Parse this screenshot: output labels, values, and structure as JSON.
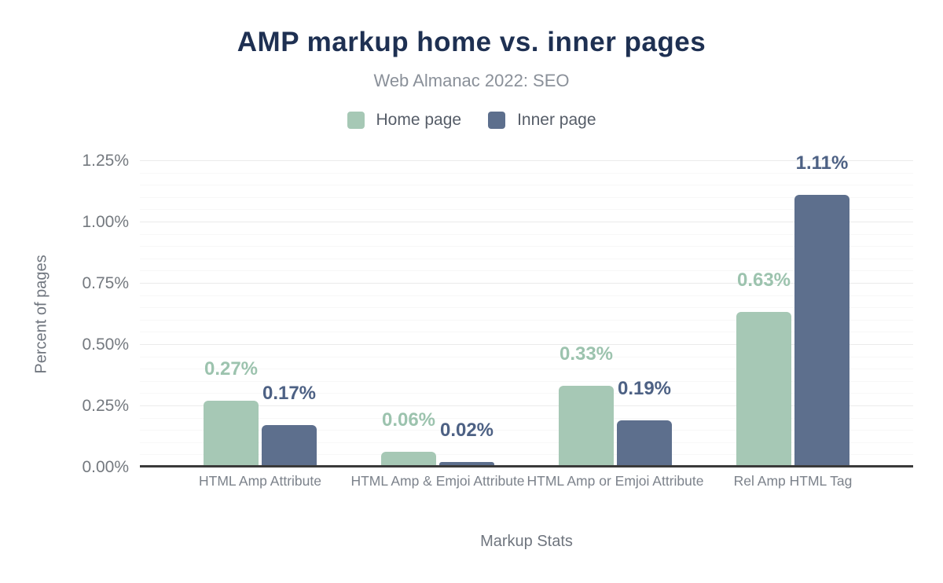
{
  "header": {
    "title": "AMP markup home vs. inner pages",
    "subtitle": "Web Almanac 2022: SEO"
  },
  "legend": {
    "items": [
      {
        "label": "Home page",
        "color": "#a6c8b5"
      },
      {
        "label": "Inner page",
        "color": "#5d6f8d"
      }
    ]
  },
  "axes": {
    "y_title": "Percent of pages",
    "x_title": "Markup Stats",
    "y_ticks": [
      "0.00%",
      "0.25%",
      "0.50%",
      "0.75%",
      "1.00%",
      "1.25%"
    ]
  },
  "chart_data": {
    "type": "bar",
    "title": "AMP markup home vs. inner pages",
    "subtitle": "Web Almanac 2022: SEO",
    "categories": [
      "HTML Amp Attribute",
      "HTML Amp & Emjoi Attribute",
      "HTML Amp or Emjoi Attribute",
      "Rel Amp HTML Tag"
    ],
    "series": [
      {
        "name": "Home page",
        "color": "#a6c8b5",
        "label_color": "#9cc3ae",
        "values": [
          0.27,
          0.06,
          0.33,
          0.63
        ],
        "labels": [
          "0.27%",
          "0.06%",
          "0.33%",
          "0.63%"
        ]
      },
      {
        "name": "Inner page",
        "color": "#5d6f8d",
        "label_color": "#4d6184",
        "values": [
          0.17,
          0.02,
          0.19,
          1.11
        ],
        "labels": [
          "0.17%",
          "0.02%",
          "0.19%",
          "1.11%"
        ]
      }
    ],
    "xlabel": "Markup Stats",
    "ylabel": "Percent of pages",
    "ylim": [
      0,
      1.25
    ],
    "ytick_step": 0.25,
    "minor_grid_step": 0.05,
    "grid": true,
    "legend_position": "top"
  }
}
